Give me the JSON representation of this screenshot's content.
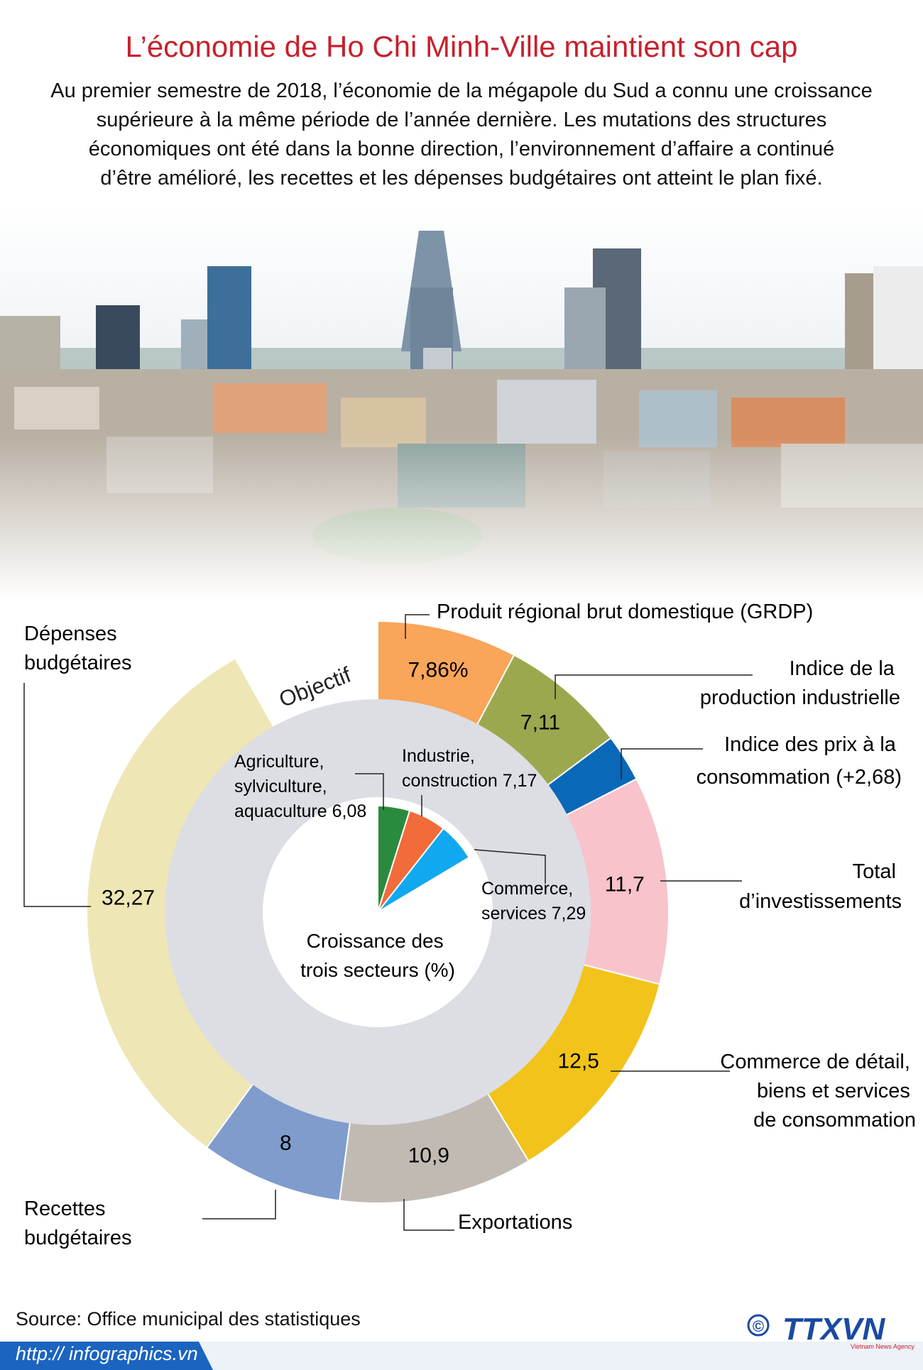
{
  "header": {
    "title": "L’économie de Ho Chi Minh-Ville maintient son cap",
    "intro_lines": [
      "Au premier semestre de 2018, l’économie de la mégapole du Sud a connu une croissance",
      "supérieure à la même période de l’année dernière. Les mutations des structures",
      "économiques ont été dans la bonne direction, l’environnement d’affaire a continué",
      "d’être amélioré, les recettes et les dépenses budgétaires ont atteint le plan fixé."
    ]
  },
  "chart_data": [
    {
      "type": "pie",
      "name_label": "Objectif",
      "segments": [
        {
          "label": "Produit régional brut domestique (GRDP)",
          "label_lines": [
            "Produit régional brut domestique (GRDP)"
          ],
          "value": 7.86,
          "value_label": "7,86%",
          "color": "#f9a55a"
        },
        {
          "label": "Indice de la production industrielle",
          "label_lines": [
            "Indice de la",
            "production industrielle"
          ],
          "value": 7.11,
          "value_label": "7,11",
          "color": "#9ca84e"
        },
        {
          "label": "Indice des prix à la consommation (+2,68)",
          "label_lines": [
            "Indice des prix à la",
            "consommation (+2,68)"
          ],
          "value": 2.68,
          "value_label": "",
          "color": "#0a68b8"
        },
        {
          "label": "Total d’investissements",
          "label_lines": [
            "Total",
            "d’investissements"
          ],
          "value": 11.7,
          "value_label": "11,7",
          "color": "#f8c3cb"
        },
        {
          "label": "Commerce de détail, biens et services de consommation",
          "label_lines": [
            "Commerce de détail,",
            "biens et services",
            "de consommation"
          ],
          "value": 12.5,
          "value_label": "12,5",
          "color": "#f2c31a"
        },
        {
          "label": "Exportations",
          "label_lines": [
            "Exportations"
          ],
          "value": 10.9,
          "value_label": "10,9",
          "color": "#c0bab2"
        },
        {
          "label": "Recettes budgétaires",
          "label_lines": [
            "Recettes",
            "budgétaires"
          ],
          "value": 8,
          "value_label": "8",
          "color": "#7f9ccc"
        },
        {
          "label": "Dépenses budgétaires",
          "label_lines": [
            "Dépenses",
            "budgétaires"
          ],
          "value": 32.27,
          "value_label": "32,27",
          "color": "#efe6b5"
        }
      ]
    },
    {
      "type": "pie",
      "title_lines": [
        "Croissance des",
        "trois secteurs (%)"
      ],
      "segments": [
        {
          "label": "Agriculture, sylviculture, aquaculture",
          "label_lines": [
            "Agriculture,",
            "sylviculture,",
            "aquaculture 6,08"
          ],
          "value": 6.08,
          "color": "#2a8a3e"
        },
        {
          "label": "Industrie, construction",
          "label_lines": [
            "Industrie,",
            "construction 7,17"
          ],
          "value": 7.17,
          "color": "#f26b3a"
        },
        {
          "label": "Commerce, services",
          "label_lines": [
            "Commerce,",
            "services 7,29"
          ],
          "value": 7.29,
          "color": "#12a8ef"
        }
      ]
    }
  ],
  "footer": {
    "source": "Source: Office municipal des statistiques",
    "url": "http:// infographics.vn",
    "copyright": "©",
    "logo_text": "TTXVN",
    "logo_subtext": "Vietnam News Agency"
  },
  "colors": {
    "title": "#c8202c",
    "inner_ring": "#dcdee4",
    "url_bar": "#1b64c0",
    "logo": "#1b4aa0"
  }
}
